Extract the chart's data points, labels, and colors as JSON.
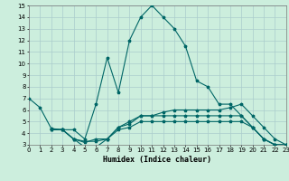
{
  "xlabel": "Humidex (Indice chaleur)",
  "bg_color": "#cceedd",
  "grid_color": "#aacccc",
  "line_color": "#006666",
  "ylim": [
    3,
    15
  ],
  "xlim": [
    0,
    23
  ],
  "yticks": [
    3,
    4,
    5,
    6,
    7,
    8,
    9,
    10,
    11,
    12,
    13,
    14,
    15
  ],
  "xticks": [
    0,
    1,
    2,
    3,
    4,
    5,
    6,
    7,
    8,
    9,
    10,
    11,
    12,
    13,
    14,
    15,
    16,
    17,
    18,
    19,
    20,
    21,
    22,
    23
  ],
  "curve1_x": [
    0,
    1,
    2,
    3,
    4,
    5,
    6,
    7,
    8,
    9,
    10,
    11,
    12,
    13,
    14,
    15,
    16,
    17,
    18,
    19,
    20,
    21,
    22,
    23
  ],
  "curve1_y": [
    7.0,
    6.2,
    4.4,
    4.3,
    4.3,
    3.5,
    6.5,
    10.5,
    7.5,
    12.0,
    14.0,
    15.0,
    14.0,
    13.0,
    11.5,
    8.5,
    8.0,
    6.5,
    6.5,
    5.5,
    4.5,
    3.5,
    3.0,
    3.0
  ],
  "curve2_x": [
    2,
    3,
    4,
    5,
    6,
    7,
    8,
    9,
    10,
    11,
    12,
    13,
    14,
    15,
    16,
    17,
    18,
    19,
    20,
    21,
    22,
    23
  ],
  "curve2_y": [
    4.3,
    4.3,
    3.5,
    3.3,
    3.3,
    3.5,
    4.5,
    5.0,
    5.5,
    5.5,
    5.5,
    5.5,
    5.5,
    5.5,
    5.5,
    5.5,
    5.5,
    5.5,
    4.5,
    3.5,
    3.0,
    3.0
  ],
  "curve3_x": [
    2,
    3,
    4,
    5,
    6,
    7,
    8,
    9,
    10,
    11,
    12,
    13,
    14,
    15,
    16,
    17,
    18,
    19,
    20,
    21,
    22,
    23
  ],
  "curve3_y": [
    4.3,
    4.3,
    3.5,
    2.8,
    2.8,
    3.5,
    4.3,
    4.5,
    5.0,
    5.0,
    5.0,
    5.0,
    5.0,
    5.0,
    5.0,
    5.0,
    5.0,
    5.0,
    4.5,
    3.5,
    3.0,
    3.0
  ],
  "curve4_x": [
    2,
    3,
    4,
    5,
    6,
    7,
    8,
    9,
    10,
    11,
    12,
    13,
    14,
    15,
    16,
    17,
    18,
    19,
    20,
    21,
    22,
    23
  ],
  "curve4_y": [
    4.3,
    4.3,
    3.5,
    3.2,
    3.5,
    3.5,
    4.5,
    4.8,
    5.5,
    5.5,
    5.8,
    6.0,
    6.0,
    6.0,
    6.0,
    6.0,
    6.2,
    6.5,
    5.5,
    4.5,
    3.5,
    3.0
  ]
}
